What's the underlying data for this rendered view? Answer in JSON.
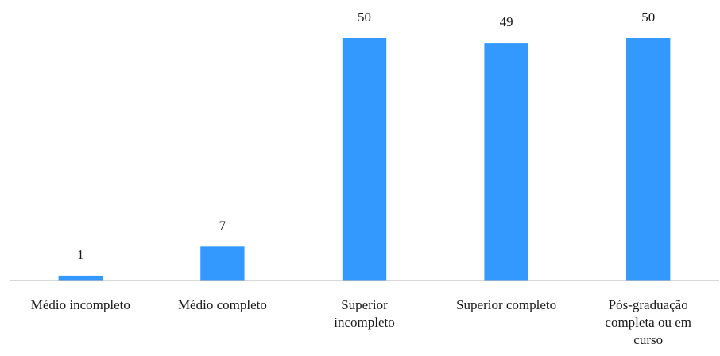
{
  "chart_data": {
    "type": "bar",
    "title": "",
    "xlabel": "",
    "ylabel": "",
    "categories": [
      [
        "Médio incompleto"
      ],
      [
        "Médio completo"
      ],
      [
        "Superior",
        "incompleto"
      ],
      [
        "Superior completo"
      ],
      [
        "Pós-graduação",
        "completa ou em",
        "curso"
      ]
    ],
    "values": [
      1,
      7,
      50,
      49,
      50
    ],
    "ylim": [
      0,
      50
    ],
    "bar_color": "#3399FF",
    "axis_color": "#BFBFBF",
    "data_labels": true,
    "grid": false,
    "legend": "none"
  }
}
